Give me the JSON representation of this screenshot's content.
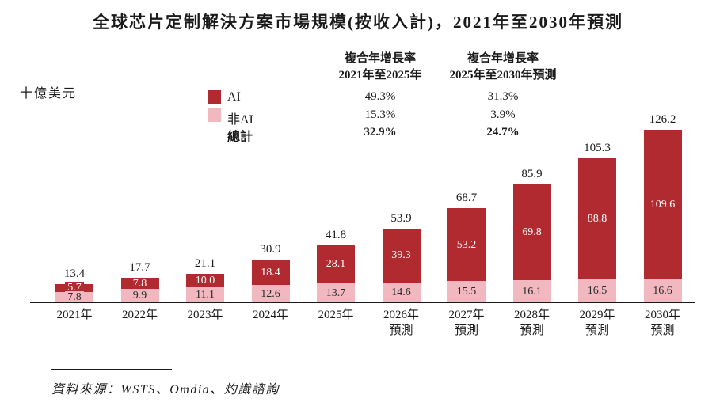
{
  "title": "全球芯片定制解決方案市場規模(按收入計)，2021年至2030年預測",
  "y_unit": "十億美元",
  "legend": {
    "ai_label": "AI",
    "non_ai_label": "非AI",
    "total_label": "總計"
  },
  "colors": {
    "ai": "#B02A30",
    "non_ai": "#F2B8C0",
    "text_on_ai": "#ffffff",
    "text_on_non_ai": "#2a2a2a",
    "axis": "#1a1a1a"
  },
  "cagr_table": {
    "col1": {
      "header_line1": "複合年增長率",
      "header_line2": "2021年至2025年",
      "ai": "49.3%",
      "non_ai": "15.3%",
      "total": "32.9%"
    },
    "col2": {
      "header_line1": "複合年增長率",
      "header_line2": "2025年至2030年預測",
      "ai": "31.3%",
      "non_ai": "3.9%",
      "total": "24.7%"
    }
  },
  "source": "資料來源：WSTS、Omdia、灼識諮詢",
  "x_axis": {
    "labels": [
      {
        "line1": "2021年",
        "line2": ""
      },
      {
        "line1": "2022年",
        "line2": ""
      },
      {
        "line1": "2023年",
        "line2": ""
      },
      {
        "line1": "2024年",
        "line2": ""
      },
      {
        "line1": "2025年",
        "line2": ""
      },
      {
        "line1": "2026年",
        "line2": "預測"
      },
      {
        "line1": "2027年",
        "line2": "預測"
      },
      {
        "line1": "2028年",
        "line2": "預測"
      },
      {
        "line1": "2029年",
        "line2": "預測"
      },
      {
        "line1": "2030年",
        "line2": "預測"
      }
    ]
  },
  "chart_data": {
    "type": "bar",
    "stacked": true,
    "title": "全球芯片定制解決方案市場規模(按收入計)，2021年至2030年預測",
    "ylabel": "十億美元",
    "xlabel": "",
    "grid": false,
    "legend_position": "top-left",
    "categories": [
      "2021年",
      "2022年",
      "2023年",
      "2024年",
      "2025年",
      "2026年預測",
      "2027年預測",
      "2028年預測",
      "2029年預測",
      "2030年預測"
    ],
    "series": [
      {
        "name": "AI",
        "color": "#B02A30",
        "values": [
          5.7,
          7.8,
          10.0,
          18.4,
          28.1,
          39.3,
          53.2,
          69.8,
          88.8,
          109.6
        ],
        "labels": [
          "5.7",
          "7.8",
          "10.0",
          "18.4",
          "28.1",
          "39.3",
          "53.2",
          "69.8",
          "88.8",
          "109.6"
        ]
      },
      {
        "name": "非AI",
        "color": "#F2B8C0",
        "values": [
          7.8,
          9.9,
          11.1,
          12.6,
          13.7,
          14.6,
          15.5,
          16.1,
          16.5,
          16.6
        ],
        "labels": [
          "7.8",
          "9.9",
          "11.1",
          "12.6",
          "13.7",
          "14.6",
          "15.5",
          "16.1",
          "16.5",
          "16.6"
        ]
      }
    ],
    "totals": [
      13.4,
      17.7,
      21.1,
      30.9,
      41.8,
      53.9,
      68.7,
      85.9,
      105.3,
      126.2
    ],
    "total_labels": [
      "13.4",
      "17.7",
      "21.1",
      "30.9",
      "41.8",
      "53.9",
      "68.7",
      "85.9",
      "105.3",
      "126.2"
    ],
    "cagr": {
      "2021_2025": {
        "AI": "49.3%",
        "非AI": "15.3%",
        "總計": "32.9%"
      },
      "2025_2030_forecast": {
        "AI": "31.3%",
        "非AI": "3.9%",
        "總計": "24.7%"
      }
    }
  }
}
